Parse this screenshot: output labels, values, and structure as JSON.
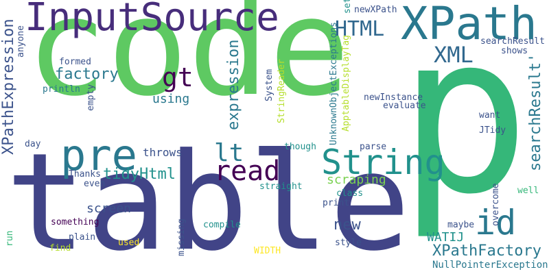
{
  "words": [
    {
      "text": "code",
      "color": "#5ec962"
    },
    {
      "text": "table",
      "color": "#414487"
    },
    {
      "text": "p",
      "color": "#35b779"
    },
    {
      "text": "XPath",
      "color": "#2a788e"
    },
    {
      "text": "InputSource",
      "color": "#472d7b"
    },
    {
      "text": "pre",
      "color": "#2a788e"
    },
    {
      "text": "String",
      "color": "#21918c"
    },
    {
      "text": "id",
      "color": "#2a788e"
    },
    {
      "text": "read",
      "color": "#440154"
    },
    {
      "text": "lt",
      "color": "#2a788e"
    },
    {
      "text": "gt",
      "color": "#440154"
    },
    {
      "text": "HTML",
      "color": "#31688e"
    },
    {
      "text": "XML",
      "color": "#31688e"
    },
    {
      "text": "factory",
      "color": "#2a788e"
    },
    {
      "text": "expression",
      "color": "#2a788e"
    },
    {
      "text": "XPathExpression",
      "color": "#3b528b"
    },
    {
      "text": "tidyHtml",
      "color": "#21918c"
    },
    {
      "text": "searchResult'",
      "color": "#2a788e"
    },
    {
      "text": "XPathFactory",
      "color": "#2a788e"
    },
    {
      "text": "NullPointerExceptions",
      "color": "#2a788e"
    },
    {
      "text": "new",
      "color": "#3b528b"
    },
    {
      "text": "WATIJ",
      "color": "#21918c"
    },
    {
      "text": "using",
      "color": "#2a788e"
    },
    {
      "text": "scraping",
      "color": "#7ad151"
    },
    {
      "text": "screen",
      "color": "#3b528b"
    },
    {
      "text": "throws",
      "color": "#3b528b"
    },
    {
      "text": "formed",
      "color": "#3b528b"
    },
    {
      "text": "println",
      "color": "#2a788e"
    },
    {
      "text": "empty",
      "color": "#3b528b"
    },
    {
      "text": "anyone",
      "color": "#3b528b"
    },
    {
      "text": "day",
      "color": "#3b528b"
    },
    {
      "text": "Thanks",
      "color": "#3b528b"
    },
    {
      "text": "even",
      "color": "#3b528b"
    },
    {
      "text": "something",
      "color": "#440154"
    },
    {
      "text": "plain",
      "color": "#3b528b"
    },
    {
      "text": "used",
      "color": "#fde725"
    },
    {
      "text": "find",
      "color": "#b5de2b"
    },
    {
      "text": "run",
      "color": "#35b779"
    },
    {
      "text": "missing",
      "color": "#3b528b"
    },
    {
      "text": "compile",
      "color": "#21918c"
    },
    {
      "text": "WIDTH",
      "color": "#fde725"
    },
    {
      "text": "straight",
      "color": "#21918c"
    },
    {
      "text": "print",
      "color": "#3b528b"
    },
    {
      "text": "style",
      "color": "#3b528b"
    },
    {
      "text": "class",
      "color": "#21918c"
    },
    {
      "text": "ApptableDisplayTag",
      "color": "#b5de2b"
    },
    {
      "text": "StringReader",
      "color": "#b5de2b"
    },
    {
      "text": "System",
      "color": "#3b528b"
    },
    {
      "text": "UnknownObjectExceptions",
      "color": "#2a788e"
    },
    {
      "text": "though",
      "color": "#21918c"
    },
    {
      "text": "parse",
      "color": "#3b528b"
    },
    {
      "text": "newInstance",
      "color": "#3b528b"
    },
    {
      "text": "evaluate",
      "color": "#3b528b"
    },
    {
      "text": "JTidy",
      "color": "#3b528b"
    },
    {
      "text": "want",
      "color": "#3b528b"
    },
    {
      "text": "shows",
      "color": "#3b528b"
    },
    {
      "text": "searchResult",
      "color": "#3b528b"
    },
    {
      "text": "newXPath",
      "color": "#3b528b"
    },
    {
      "text": "set",
      "color": "#21918c"
    },
    {
      "text": "well",
      "color": "#35b779"
    },
    {
      "text": "overcome",
      "color": "#3b528b"
    },
    {
      "text": "maybe",
      "color": "#3b528b"
    }
  ]
}
